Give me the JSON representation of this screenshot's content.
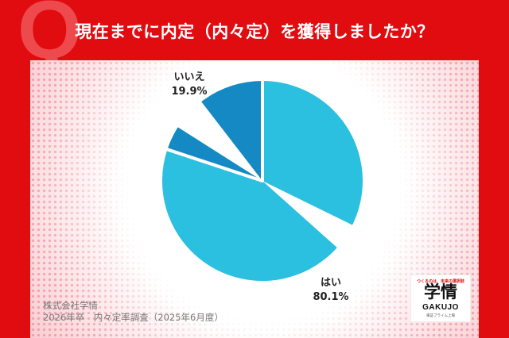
{
  "header": {
    "q_mark": "Q",
    "question": "現在までに内定（内々定）を獲得しましたか？"
  },
  "chart_data": {
    "type": "pie",
    "categories": [
      "はい",
      "いいえ"
    ],
    "values": [
      80.1,
      19.9
    ],
    "value_labels": [
      "80.1%",
      "19.9%"
    ],
    "colors": [
      "#2bbfe0",
      "#1489c4"
    ],
    "start": "12 o'clock",
    "direction": "clockwise",
    "title": ""
  },
  "footer": {
    "source_line1": "株式会社学情",
    "source_line2": "2026年卒　内々定率調査（2025年6月度）"
  },
  "logo": {
    "tagline": "つくるのは、未来の選択肢",
    "main": "学情",
    "sub": "GAKUJO",
    "foot": "東証プライム上場"
  },
  "colors": {
    "brand_red": "#e10c10",
    "yes_slice": "#2bbfe0",
    "no_slice": "#1489c4"
  }
}
